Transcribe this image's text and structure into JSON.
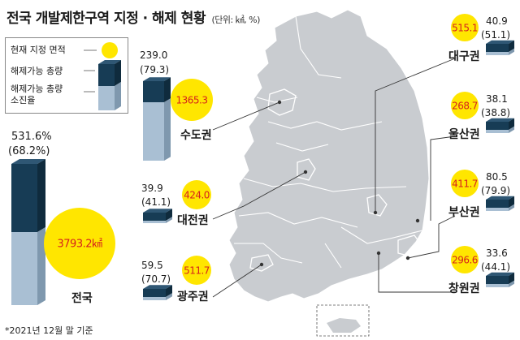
{
  "title": "전국 개발제한구역 지정 · 해제 현황",
  "unit": "(단위: ㎢, %)",
  "footnote": "*2021년 12월 말 기준",
  "legend": {
    "area": "현재 지정 면적",
    "capacity": "해제가능 총량",
    "exhaustion_line1": "해제가능 총량",
    "exhaustion_line2": "소진율"
  },
  "colors": {
    "circle": "#ffe600",
    "circle_text": "#d6221c",
    "bar_dark": "#173c55",
    "bar_light": "#a9bfd3",
    "map": "#c9ccd0"
  },
  "chart_data": {
    "type": "bar",
    "regions": [
      {
        "name": "전국",
        "area": "3793.2㎢",
        "capacity": "531.6%",
        "exhaustion": "(68.2%)"
      },
      {
        "name": "수도권",
        "area": "1365.3",
        "capacity": "239.0",
        "exhaustion": "(79.3)"
      },
      {
        "name": "대전권",
        "area": "424.0",
        "capacity": "39.9",
        "exhaustion": "(41.1)"
      },
      {
        "name": "광주권",
        "area": "511.7",
        "capacity": "59.5",
        "exhaustion": "(70.7)"
      },
      {
        "name": "대구권",
        "area": "515.1",
        "capacity": "40.9",
        "exhaustion": "(51.1)"
      },
      {
        "name": "울산권",
        "area": "268.7",
        "capacity": "38.1",
        "exhaustion": "(38.8)"
      },
      {
        "name": "부산권",
        "area": "411.7",
        "capacity": "80.5",
        "exhaustion": "(79.9)"
      },
      {
        "name": "창원권",
        "area": "296.6",
        "capacity": "33.6",
        "exhaustion": "(44.1)"
      }
    ]
  }
}
